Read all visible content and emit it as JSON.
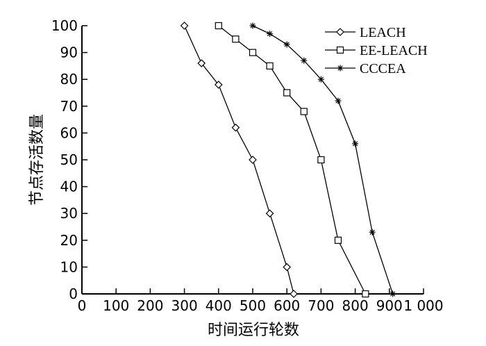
{
  "chart_data": {
    "type": "line",
    "title": "",
    "xlabel": "时间运行轮数",
    "ylabel": "节点存活数量",
    "xlim": [
      0,
      1000
    ],
    "ylim": [
      0,
      100
    ],
    "xticks": [
      0,
      100,
      200,
      300,
      400,
      500,
      600,
      700,
      800,
      900,
      1000
    ],
    "xtick_labels": [
      "0",
      "100",
      "200",
      "300",
      "400",
      "500",
      "600",
      "700",
      "800",
      "900",
      "1 000"
    ],
    "yticks": [
      0,
      10,
      20,
      30,
      40,
      50,
      60,
      70,
      80,
      90,
      100
    ],
    "ytick_labels": [
      "0",
      "10",
      "20",
      "30",
      "40",
      "50",
      "60",
      "70",
      "80",
      "90",
      "100"
    ],
    "grid": false,
    "legend_position": "top-right",
    "series": [
      {
        "name": "LEACH",
        "marker": "diamond",
        "x": [
          300,
          350,
          400,
          450,
          500,
          550,
          600,
          620
        ],
        "y": [
          100,
          86,
          78,
          62,
          50,
          30,
          10,
          0
        ]
      },
      {
        "name": "EE-LEACH",
        "marker": "square",
        "x": [
          400,
          450,
          500,
          550,
          600,
          650,
          700,
          750,
          830
        ],
        "y": [
          100,
          95,
          90,
          85,
          75,
          68,
          50,
          20,
          0
        ]
      },
      {
        "name": "CCCEA",
        "marker": "star",
        "x": [
          500,
          550,
          600,
          650,
          700,
          750,
          800,
          850,
          910
        ],
        "y": [
          100,
          97,
          93,
          87,
          80,
          72,
          56,
          23,
          0
        ]
      }
    ]
  }
}
